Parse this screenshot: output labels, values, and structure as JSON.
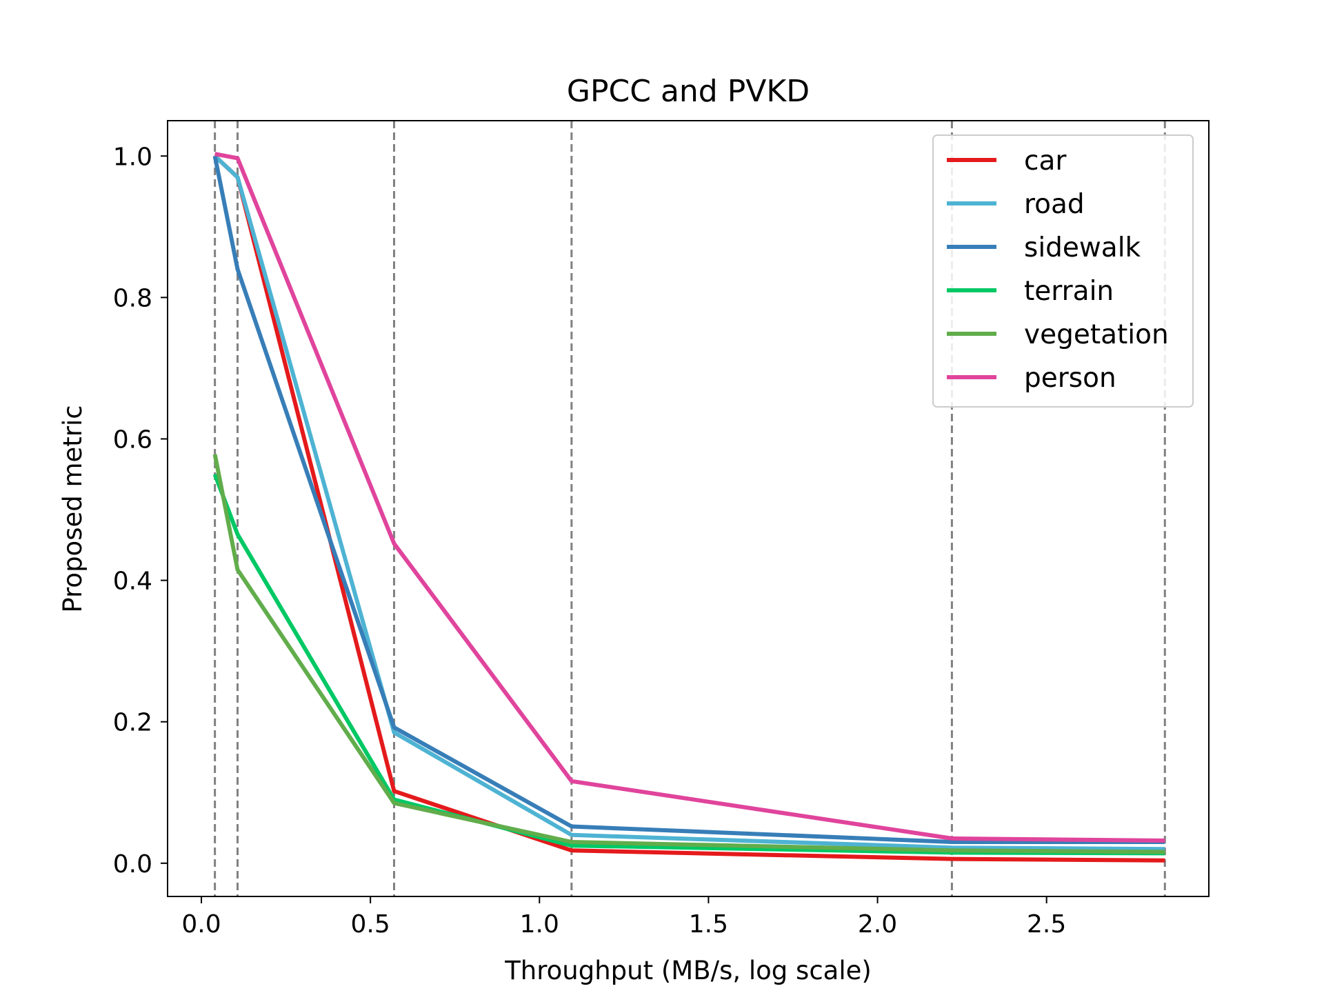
{
  "chart_data": {
    "type": "line",
    "title": "GPCC and PVKD",
    "xlabel": "Throughput (MB/s, log scale)",
    "ylabel": "Proposed metric",
    "xlim": [
      -0.1,
      2.98
    ],
    "ylim": [
      -0.047,
      1.05
    ],
    "x_ticks": [
      {
        "value": 0.0,
        "label": "0.0"
      },
      {
        "value": 0.5,
        "label": "0.5"
      },
      {
        "value": 1.0,
        "label": "1.0"
      },
      {
        "value": 1.5,
        "label": "1.5"
      },
      {
        "value": 2.0,
        "label": "2.0"
      },
      {
        "value": 2.5,
        "label": "2.5"
      }
    ],
    "y_ticks": [
      {
        "value": 0.0,
        "label": "0.0"
      },
      {
        "value": 0.2,
        "label": "0.2"
      },
      {
        "value": 0.4,
        "label": "0.4"
      },
      {
        "value": 0.6,
        "label": "0.6"
      },
      {
        "value": 0.8,
        "label": "0.8"
      },
      {
        "value": 1.0,
        "label": "1.0"
      }
    ],
    "vlines": [
      0.04,
      0.107,
      0.57,
      1.095,
      2.22,
      2.85
    ],
    "grid": false,
    "legend_position": "top-right",
    "x": [
      0.04,
      0.107,
      0.57,
      1.095,
      2.22,
      2.85
    ],
    "series": [
      {
        "name": "car",
        "color": "#e41a1c",
        "values": [
          1.0,
          0.97,
          0.102,
          0.018,
          0.006,
          0.004
        ]
      },
      {
        "name": "road",
        "color": "#4eb3d3",
        "values": [
          1.0,
          0.97,
          0.185,
          0.04,
          0.022,
          0.02
        ]
      },
      {
        "name": "sidewalk",
        "color": "#377eb8",
        "values": [
          1.0,
          0.84,
          0.192,
          0.052,
          0.03,
          0.03
        ]
      },
      {
        "name": "terrain",
        "color": "#00c864",
        "values": [
          0.55,
          0.465,
          0.09,
          0.025,
          0.015,
          0.014
        ]
      },
      {
        "name": "vegetation",
        "color": "#61ad4b",
        "values": [
          0.578,
          0.415,
          0.085,
          0.03,
          0.018,
          0.016
        ]
      },
      {
        "name": "person",
        "color": "#e0449c",
        "values": [
          1.003,
          0.997,
          0.452,
          0.116,
          0.035,
          0.032
        ]
      }
    ]
  }
}
